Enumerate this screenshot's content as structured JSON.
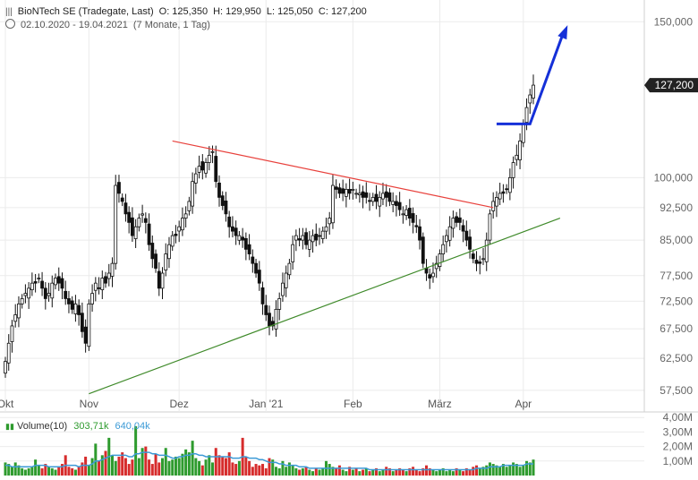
{
  "header": {
    "instrument": "BioNTech SE (Tradegate, Last)",
    "open": "O: 125,350",
    "high": "H: 129,950",
    "low": "L: 125,050",
    "close": "C: 127,200",
    "range": "02.10.2020 - 19.04.2021",
    "period": "(7 Monate, 1 Tag)"
  },
  "last_price_label": "127,200",
  "volume_legend": {
    "title": "Volume(10)",
    "value1": "303,71k",
    "value2": "640,04k"
  },
  "colors": {
    "up": "#2e9b2e",
    "down": "#d62c2c",
    "resistance": "#e8413c",
    "support": "#3f8a2a",
    "arrow": "#1530d8",
    "avg": "#3c9ad6"
  },
  "chart_data": [
    {
      "type": "candlestick",
      "title": "BioNTech SE (Tradegate, Last)",
      "x_tick_labels": [
        "Okt",
        "Nov",
        "Dez",
        "Jan '21",
        "Feb",
        "März",
        "Apr"
      ],
      "y_tick_labels": [
        "150,000",
        "100,000",
        "92,500",
        "85,000",
        "77,500",
        "72,500",
        "67,500",
        "62,500",
        "57,500"
      ],
      "y_ticks": [
        150,
        100,
        92.5,
        85,
        77.5,
        72.5,
        67.5,
        62.5,
        57.5
      ],
      "y_scale": "log",
      "ylim": [
        55,
        158
      ],
      "grid": true,
      "last_price": 127.2,
      "closes": [
        62,
        65,
        68,
        70,
        72,
        73,
        74,
        75,
        76,
        76,
        77,
        75,
        73,
        74,
        76,
        77,
        76,
        75,
        73,
        72,
        71,
        72,
        70,
        67,
        65,
        72,
        74,
        76,
        75,
        77,
        76,
        78,
        80,
        98,
        96,
        94,
        91,
        89,
        86,
        88,
        90,
        91,
        89,
        84,
        81,
        79,
        75,
        78,
        82,
        84,
        86,
        86,
        88,
        90,
        91,
        94,
        99,
        101,
        103,
        102,
        104,
        106,
        107,
        99,
        95,
        93,
        91,
        88,
        87,
        86,
        86,
        85,
        83,
        82,
        80,
        78,
        76,
        72,
        70,
        68,
        68,
        71,
        73,
        76,
        78,
        80,
        84,
        86,
        85,
        86,
        84,
        85,
        86,
        85,
        86,
        87,
        88,
        90,
        98,
        97,
        96,
        96,
        97,
        96,
        97,
        96,
        96,
        95,
        95,
        94,
        95,
        94,
        95,
        96,
        95,
        94,
        94,
        93,
        92,
        91,
        92,
        90,
        89,
        88,
        85,
        80,
        78,
        77,
        78,
        80,
        82,
        84,
        86,
        88,
        90,
        89,
        89,
        87,
        85,
        83,
        81,
        80,
        80,
        81,
        85,
        91,
        94,
        95,
        96,
        96,
        97,
        100,
        104,
        106,
        110,
        115,
        120,
        124,
        127.2
      ],
      "events": [
        {
          "label": "resistance trendline",
          "from_index": 50,
          "from_value": 110,
          "to_index": 146,
          "to_value": 92.5
        },
        {
          "label": "support trendline",
          "from_index": 25,
          "from_value": 57,
          "to_index": 166,
          "to_value": 90
        },
        {
          "label": "breakout arrow",
          "level": 115,
          "target": 148
        }
      ]
    },
    {
      "type": "bar",
      "title": "Volume(10)",
      "y_tick_labels": [
        "4,00M",
        "3,00M",
        "2,00M",
        "1,00M"
      ],
      "y_ticks": [
        4,
        3,
        2,
        1
      ],
      "ylim": [
        0,
        4.2
      ],
      "volumes_millions": [
        0.9,
        0.8,
        0.6,
        0.9,
        0.7,
        0.5,
        0.4,
        0.5,
        0.6,
        1.1,
        0.7,
        0.5,
        0.8,
        0.6,
        0.5,
        0.4,
        0.6,
        0.8,
        1.4,
        0.6,
        0.5,
        0.4,
        0.6,
        0.9,
        1.3,
        0.7,
        1.2,
        2.2,
        1.0,
        1.4,
        1.7,
        2.6,
        1.4,
        1.0,
        1.3,
        1.6,
        1.2,
        0.8,
        1.1,
        3.4,
        1.2,
        1.9,
        2.0,
        1.1,
        0.8,
        1.5,
        0.9,
        1.2,
        1.9,
        1.0,
        1.1,
        1.3,
        1.2,
        1.5,
        1.8,
        1.6,
        2.4,
        1.2,
        1.0,
        0.7,
        1.1,
        1.4,
        0.9,
        1.9,
        1.4,
        1.3,
        1.2,
        1.6,
        0.9,
        0.8,
        1.0,
        2.6,
        1.3,
        1.0,
        0.6,
        0.8,
        0.7,
        0.8,
        0.5,
        1.2,
        1.1,
        0.6,
        0.5,
        1.0,
        0.6,
        0.9,
        0.7,
        0.5,
        0.4,
        0.5,
        0.6,
        0.4,
        0.3,
        0.5,
        0.4,
        0.5,
        1.0,
        0.8,
        0.6,
        0.5,
        0.7,
        0.4,
        0.3,
        0.6,
        0.4,
        0.5,
        0.3,
        0.4,
        0.5,
        0.3,
        0.4,
        0.5,
        0.3,
        0.4,
        0.6,
        0.5,
        0.3,
        0.4,
        0.5,
        0.4,
        0.3,
        0.5,
        0.6,
        0.4,
        0.3,
        0.5,
        0.7,
        0.5,
        0.4,
        0.3,
        0.4,
        0.5,
        0.3,
        0.4,
        0.3,
        0.5,
        0.4,
        0.3,
        0.5,
        0.4,
        0.6,
        0.7,
        0.5,
        0.6,
        0.7,
        0.9,
        0.8,
        0.7,
        0.6,
        0.8,
        0.6,
        0.7,
        0.9,
        0.8,
        0.6,
        0.7,
        1.0,
        0.9,
        1.1,
        0.8,
        0.9,
        1.0,
        1.1,
        0.9,
        0.8
      ],
      "volume_avg_millions": [
        0.7,
        0.7,
        0.6,
        0.6,
        0.6,
        0.6,
        0.6,
        0.6,
        0.6,
        0.7,
        0.7,
        0.7,
        0.7,
        0.6,
        0.6,
        0.6,
        0.6,
        0.6,
        0.7,
        0.7,
        0.7,
        0.7,
        0.6,
        0.7,
        0.7,
        0.7,
        0.8,
        1.0,
        1.0,
        1.1,
        1.2,
        1.3,
        1.4,
        1.4,
        1.4,
        1.4,
        1.4,
        1.3,
        1.3,
        1.5,
        1.5,
        1.6,
        1.6,
        1.6,
        1.5,
        1.5,
        1.4,
        1.4,
        1.4,
        1.3,
        1.2,
        1.2,
        1.3,
        1.3,
        1.4,
        1.4,
        1.5,
        1.5,
        1.4,
        1.4,
        1.3,
        1.3,
        1.3,
        1.3,
        1.3,
        1.3,
        1.3,
        1.3,
        1.2,
        1.2,
        1.2,
        1.3,
        1.3,
        1.2,
        1.2,
        1.2,
        1.1,
        1.1,
        1.0,
        0.9,
        0.9,
        0.9,
        0.8,
        0.8,
        0.7,
        0.7,
        0.7,
        0.7,
        0.6,
        0.6,
        0.6,
        0.5,
        0.5,
        0.5,
        0.5,
        0.5,
        0.5,
        0.5,
        0.5,
        0.5,
        0.5,
        0.5,
        0.5,
        0.5,
        0.5,
        0.5,
        0.5,
        0.5,
        0.5,
        0.4,
        0.4,
        0.4,
        0.4,
        0.4,
        0.4,
        0.4,
        0.4,
        0.4,
        0.4,
        0.4,
        0.4,
        0.4,
        0.4,
        0.4,
        0.4,
        0.4,
        0.4,
        0.4,
        0.4,
        0.4,
        0.4,
        0.4,
        0.4,
        0.4,
        0.4,
        0.4,
        0.4,
        0.4,
        0.4,
        0.4,
        0.4,
        0.5,
        0.5,
        0.5,
        0.5,
        0.6,
        0.6,
        0.6,
        0.6,
        0.7,
        0.7,
        0.7,
        0.7,
        0.7,
        0.7,
        0.7,
        0.8,
        0.8,
        0.8,
        0.8,
        0.8,
        0.8,
        0.9,
        0.9,
        0.9
      ]
    }
  ]
}
